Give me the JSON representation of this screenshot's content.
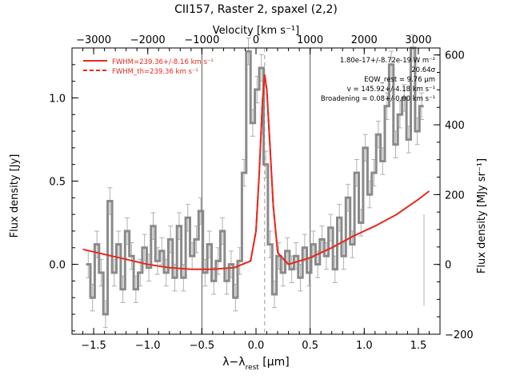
{
  "chart_data": {
    "type": "line",
    "title": "CII157, Raster 2, spaxel (2,2)",
    "xlabel_main": "λ−λ",
    "xlabel_sub": "rest",
    "xlabel_unit": " [μm]",
    "ylabel_left": "Flux density [Jy]",
    "ylabel_right": "Flux density [MJy sr⁻¹]",
    "top_axis_label": "Velocity [km s⁻¹]",
    "xlim": [
      -1.7,
      1.7
    ],
    "ylim": [
      -0.42,
      1.3
    ],
    "right_ylim": [
      -200,
      620
    ],
    "x_ticks": [
      -1.5,
      -1.0,
      -0.5,
      0.0,
      0.5,
      1.0,
      1.5
    ],
    "x_tick_labels": [
      "−1.5",
      "−1.0",
      "−0.5",
      "0.0",
      "0.5",
      "1.0",
      "1.5"
    ],
    "y_ticks": [
      0.0,
      0.5,
      1.0
    ],
    "y_tick_labels": [
      "0.0",
      "0.5",
      "1.0"
    ],
    "right_ticks": [
      -200,
      0,
      200,
      400,
      600
    ],
    "right_tick_labels": [
      "−200",
      "0",
      "200",
      "400",
      "600"
    ],
    "top_ticks": [
      -3000,
      -2000,
      -1000,
      0,
      1000,
      2000,
      3000
    ],
    "top_tick_labels": [
      "−3000",
      "−2000",
      "−1000",
      "0",
      "1000",
      "2000",
      "3000"
    ],
    "vertical_lines_x": [
      -0.5,
      0.5
    ],
    "center_line_x": 0.08,
    "spectrum": {
      "x": [
        -1.55,
        -1.51,
        -1.47,
        -1.43,
        -1.39,
        -1.35,
        -1.31,
        -1.27,
        -1.23,
        -1.19,
        -1.15,
        -1.11,
        -1.07,
        -1.03,
        -0.99,
        -0.95,
        -0.91,
        -0.87,
        -0.83,
        -0.79,
        -0.75,
        -0.71,
        -0.67,
        -0.63,
        -0.59,
        -0.55,
        -0.51,
        -0.47,
        -0.43,
        -0.39,
        -0.35,
        -0.31,
        -0.27,
        -0.23,
        -0.19,
        -0.15,
        -0.11,
        -0.07,
        -0.03,
        0.01,
        0.05,
        0.09,
        0.13,
        0.17,
        0.21,
        0.25,
        0.29,
        0.33,
        0.37,
        0.41,
        0.45,
        0.49,
        0.53,
        0.57,
        0.61,
        0.65,
        0.69,
        0.73,
        0.77,
        0.81,
        0.85,
        0.89,
        0.93,
        0.97,
        1.01,
        1.05,
        1.09,
        1.13,
        1.17,
        1.21,
        1.25,
        1.29,
        1.33,
        1.37,
        1.41,
        1.45,
        1.49,
        1.53
      ],
      "y": [
        0.0,
        -0.2,
        0.12,
        -0.05,
        -0.3,
        0.38,
        -0.05,
        0.12,
        -0.15,
        0.2,
        0.05,
        -0.15,
        -0.05,
        0.1,
        -0.02,
        0.23,
        0.02,
        0.08,
        -0.05,
        0.15,
        -0.08,
        0.23,
        -0.08,
        0.28,
        0.05,
        0.15,
        0.32,
        -0.05,
        0.12,
        -0.1,
        0.02,
        0.2,
        -0.1,
        0.0,
        -0.2,
        0.02,
        0.55,
        1.28,
        0.85,
        1.05,
        1.18,
        0.6,
        0.12,
        -0.18,
        0.05,
        -0.05,
        0.08,
        -0.03,
        0.05,
        -0.08,
        0.1,
        -0.05,
        0.12,
        0.0,
        0.15,
        0.05,
        0.22,
        -0.03,
        0.28,
        0.05,
        0.4,
        0.12,
        0.55,
        0.25,
        0.7,
        0.42,
        0.55,
        0.78,
        0.62,
        0.95,
        1.2,
        0.72,
        0.9,
        1.0,
        0.75,
        1.3,
        0.8,
        0.95
      ],
      "err": 0.08
    },
    "model_fit": {
      "x": [
        -1.6,
        -1.4,
        -1.2,
        -1.0,
        -0.8,
        -0.6,
        -0.4,
        -0.2,
        -0.05,
        0.0,
        0.03,
        0.06,
        0.08,
        0.1,
        0.13,
        0.16,
        0.2,
        0.3,
        0.5,
        0.7,
        0.9,
        1.1,
        1.3,
        1.5,
        1.6
      ],
      "y": [
        0.09,
        0.06,
        0.03,
        0.0,
        -0.02,
        -0.03,
        -0.03,
        -0.02,
        0.02,
        0.2,
        0.55,
        0.98,
        1.14,
        1.05,
        0.7,
        0.35,
        0.07,
        0.0,
        0.04,
        0.1,
        0.17,
        0.23,
        0.3,
        0.39,
        0.44
      ]
    },
    "legend": [
      {
        "label": "FWHM=239.36+/-8.16 km s⁻¹",
        "style": "solid",
        "color": "#e8291c"
      },
      {
        "label": "FWHM_th=239.36 km s⁻¹",
        "style": "dashed",
        "color": "#e8291c"
      }
    ],
    "annotations": [
      "1.80e-17+/-8.72e-19 W m⁻²",
      "20.64σ",
      "EQW_rest = 9.76 μm",
      "v = 145.92+/-4.18 km s⁻¹",
      "Broadening = 0.08+/-0.00 km s⁻¹"
    ],
    "colors": {
      "data": "#8a8a8a",
      "fit": "#e8291c",
      "errbar": "#b0b0b0",
      "axis": "#000000",
      "vline": "#555555"
    }
  }
}
